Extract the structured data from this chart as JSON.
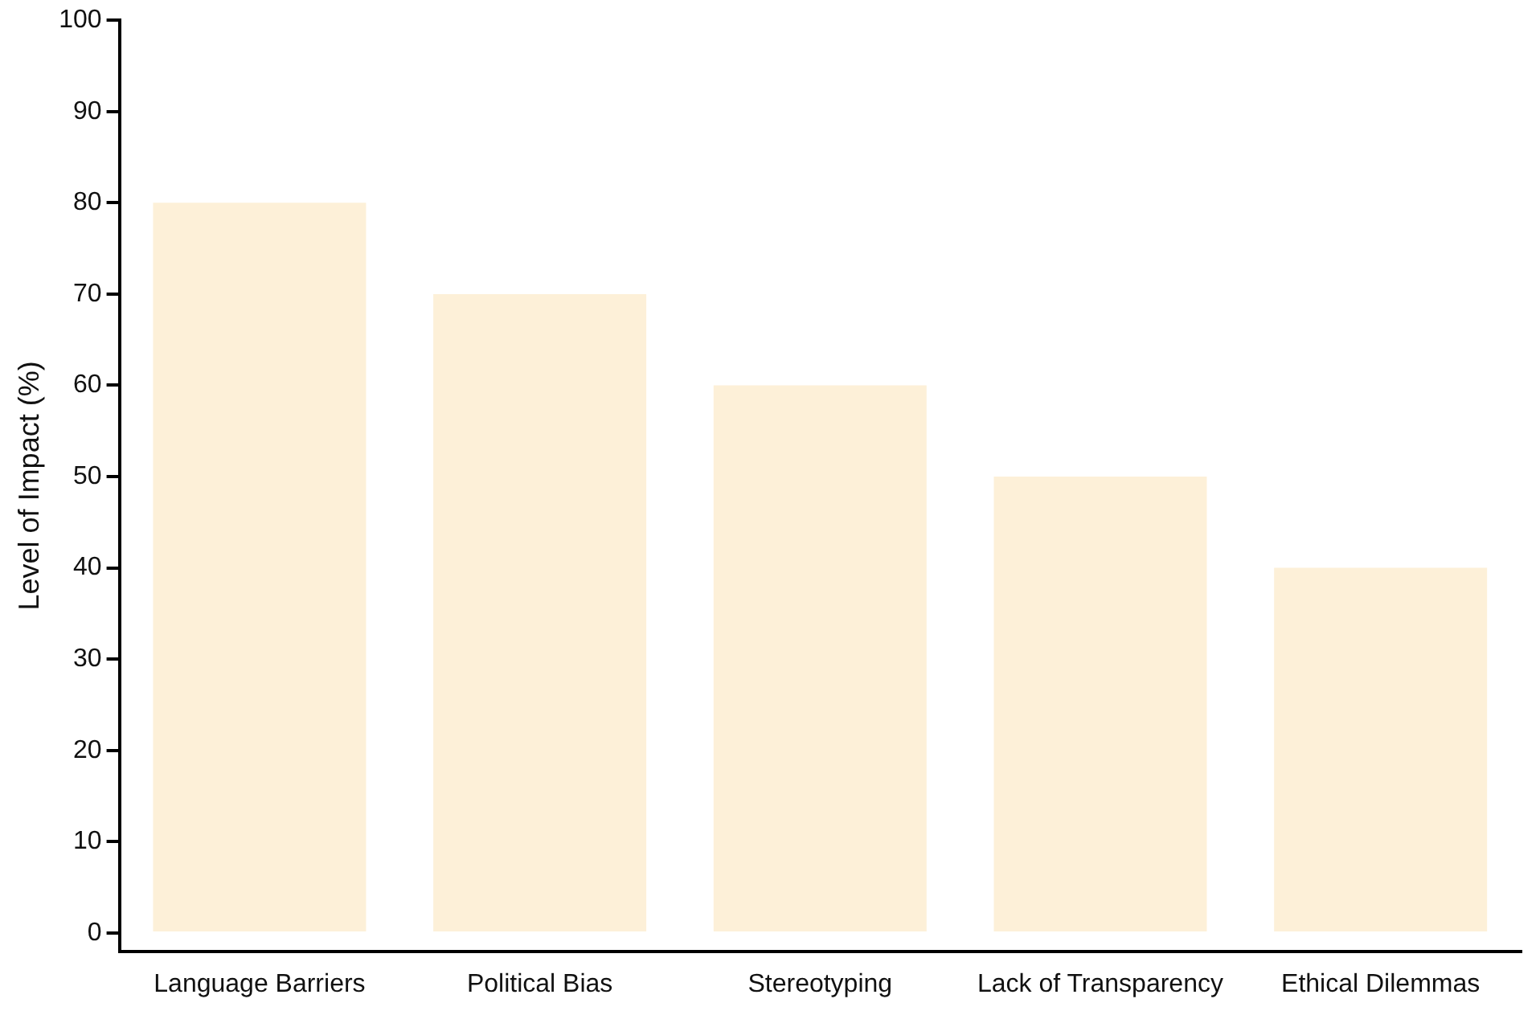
{
  "chart_data": {
    "type": "bar",
    "ylabel": "Level of Impact (%)",
    "categories": [
      "Language Barriers",
      "Political Bias",
      "Stereotyping",
      "Lack of Transparency",
      "Ethical Dilemmas"
    ],
    "values": [
      80,
      70,
      60,
      50,
      40
    ],
    "color": "#fdf0d8",
    "ylim": [
      -2,
      100
    ],
    "yticks": [
      0,
      10,
      20,
      30,
      40,
      50,
      60,
      70,
      80,
      90,
      100
    ],
    "grid": false,
    "legend": false
  }
}
